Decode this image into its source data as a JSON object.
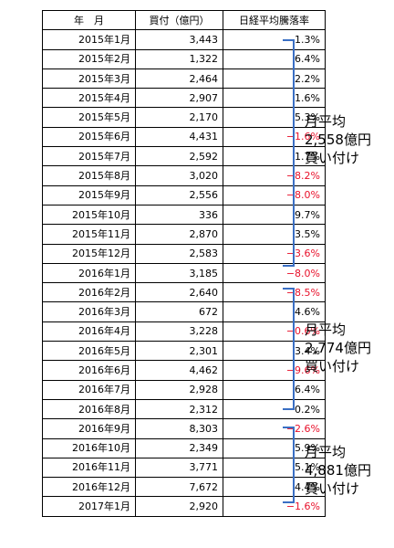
{
  "table": {
    "headers": {
      "month": "年　月",
      "amount": "買付（億円）",
      "rate": "日経平均騰落率"
    },
    "rows": [
      {
        "month": "2015年1月",
        "amount": "3,443",
        "rate": "1.3%",
        "negative": false
      },
      {
        "month": "2015年2月",
        "amount": "1,322",
        "rate": "6.4%",
        "negative": false
      },
      {
        "month": "2015年3月",
        "amount": "2,464",
        "rate": "2.2%",
        "negative": false
      },
      {
        "month": "2015年4月",
        "amount": "2,907",
        "rate": "1.6%",
        "negative": false
      },
      {
        "month": "2015年5月",
        "amount": "2,170",
        "rate": "5.3%",
        "negative": false
      },
      {
        "month": "2015年6月",
        "amount": "4,431",
        "rate": "−1.6%",
        "negative": true
      },
      {
        "month": "2015年7月",
        "amount": "2,592",
        "rate": "1.7%",
        "negative": false
      },
      {
        "month": "2015年8月",
        "amount": "3,020",
        "rate": "−8.2%",
        "negative": true
      },
      {
        "month": "2015年9月",
        "amount": "2,556",
        "rate": "−8.0%",
        "negative": true
      },
      {
        "month": "2015年10月",
        "amount": "336",
        "rate": "9.7%",
        "negative": false
      },
      {
        "month": "2015年11月",
        "amount": "2,870",
        "rate": "3.5%",
        "negative": false
      },
      {
        "month": "2015年12月",
        "amount": "2,583",
        "rate": "−3.6%",
        "negative": true
      },
      {
        "month": "2016年1月",
        "amount": "3,185",
        "rate": "−8.0%",
        "negative": true
      },
      {
        "month": "2016年2月",
        "amount": "2,640",
        "rate": "−8.5%",
        "negative": true
      },
      {
        "month": "2016年3月",
        "amount": "672",
        "rate": "4.6%",
        "negative": false
      },
      {
        "month": "2016年4月",
        "amount": "3,228",
        "rate": "−0.6%",
        "negative": true
      },
      {
        "month": "2016年5月",
        "amount": "2,301",
        "rate": "3.4%",
        "negative": false
      },
      {
        "month": "2016年6月",
        "amount": "4,462",
        "rate": "−9.6%",
        "negative": true
      },
      {
        "month": "2016年7月",
        "amount": "2,928",
        "rate": "6.4%",
        "negative": false
      },
      {
        "month": "2016年8月",
        "amount": "2,312",
        "rate": "0.2%",
        "negative": false
      },
      {
        "month": "2016年9月",
        "amount": "8,303",
        "rate": "−2.6%",
        "negative": true
      },
      {
        "month": "2016年10月",
        "amount": "2,349",
        "rate": "5.9%",
        "negative": false
      },
      {
        "month": "2016年11月",
        "amount": "3,771",
        "rate": "5.1%",
        "negative": false
      },
      {
        "month": "2016年12月",
        "amount": "7,672",
        "rate": "4.4%",
        "negative": false
      },
      {
        "month": "2017年1月",
        "amount": "2,920",
        "rate": "−1.6%",
        "negative": true
      }
    ]
  },
  "annotations": [
    {
      "lines": [
        "月平均",
        "2,558億円",
        "買い付け"
      ]
    },
    {
      "lines": [
        "月平均",
        "2,774億円",
        "買い付け"
      ]
    },
    {
      "lines": [
        "月平均",
        "4,881億円",
        "買い付け"
      ]
    }
  ],
  "colors": {
    "negative": "#e8102a",
    "bracket": "#3a6fc4",
    "text": "#000000",
    "border": "#000000"
  }
}
